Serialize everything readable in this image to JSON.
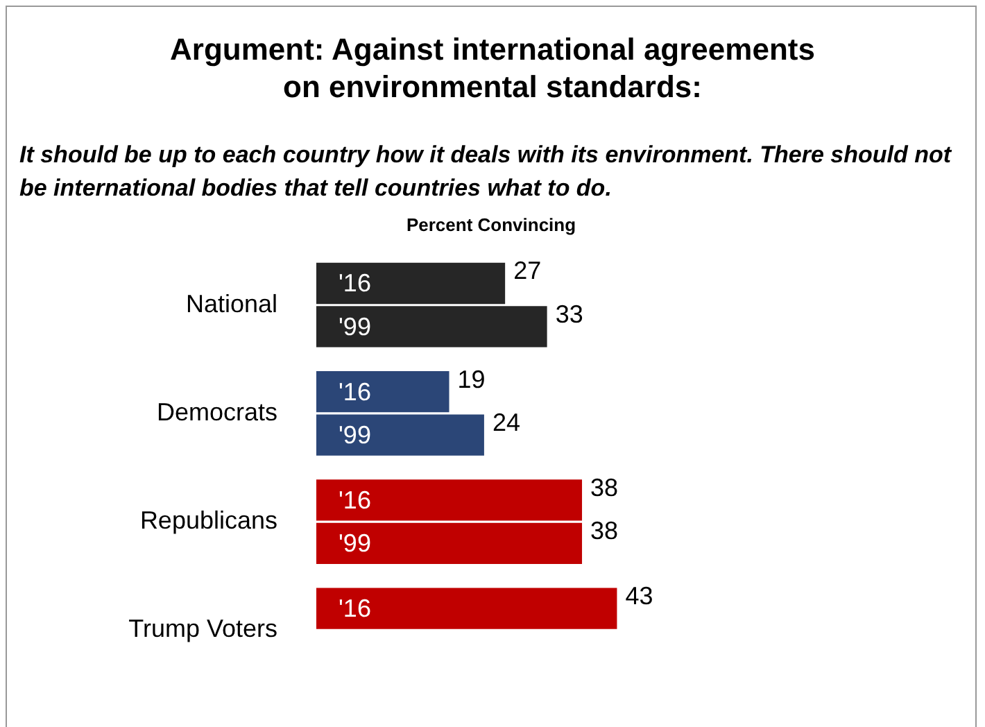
{
  "chart_data": {
    "type": "bar",
    "orientation": "horizontal",
    "title": "Argument: Against international agreements on environmental standards:",
    "subtitle": "It should be up to each country how it deals with its environment. There should not be international bodies that tell countries what to do.",
    "xlabel": "Percent Convincing",
    "categories": [
      "National",
      "Democrats",
      "Republicans",
      "Trump Voters"
    ],
    "series": [
      {
        "name": "'16",
        "values": [
          27,
          19,
          38,
          43
        ],
        "colors": [
          "#262626",
          "#2b4677",
          "#c00000",
          "#c00000"
        ]
      },
      {
        "name": "'99",
        "values": [
          33,
          24,
          38,
          null
        ],
        "colors": [
          "#262626",
          "#2b4677",
          "#c00000",
          "#c00000"
        ]
      }
    ],
    "data_labels": true,
    "tick_labels": "y"
  }
}
